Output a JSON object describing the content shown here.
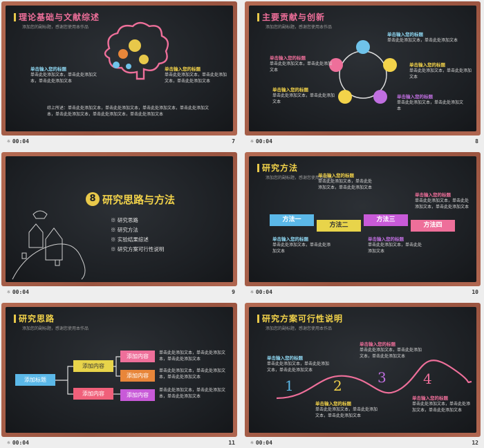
{
  "slides": [
    {
      "title": "理论基础与文献综述",
      "subtitle": "添加您的副标题，感谢您使用本作品",
      "footer_time": "00:04",
      "footer_num": "7",
      "left_heading": "单击输入您的标题",
      "left_text": "单击此处添加文本，单击此处添加文本，单击此处添加文本",
      "right_heading": "单击输入您的标题",
      "right_text": "单击此处添加文本，单击此处添加文本，单击此处添加文本",
      "bottom_text": "综上所述：单击此处添加文本，单击此处添加文本，单击此处添加文本，单击此处添加文本，单击此处添加文本，单击此处添加文本，单击此处添加文本",
      "icon": "brain-gears-icon"
    },
    {
      "title": "主要贡献与创新",
      "subtitle": "添加您的副标题，感谢您使用本作品",
      "footer_time": "00:04",
      "footer_num": "8",
      "items": [
        {
          "heading": "单击输入您的标题",
          "text": "单击此处添加文本，单击此处添加文本"
        },
        {
          "heading": "单击输入您的标题",
          "text": "单击此处添加文本，单击此处添加文本"
        },
        {
          "heading": "单击输入您的标题",
          "text": "单击此处添加文本，单击此处添加文本"
        },
        {
          "heading": "单击输入您的标题",
          "text": "单击此处添加文本，单击此处添加文本"
        },
        {
          "heading": "单击输入您的标题",
          "text": "单击此处添加文本，单击此处添加文本"
        }
      ],
      "circle_colors": [
        "#6fc3ea",
        "#f3d34a",
        "#c06fe0",
        "#f3d34a",
        "#ee6f9a"
      ]
    },
    {
      "title": "研究思路与方法",
      "badge": "8",
      "footer_time": "00:04",
      "footer_num": "9",
      "menu": [
        "研究思路",
        "研究方法",
        "实验结果综述",
        "研究方案可行性说明"
      ],
      "icon": "sketch-town-icon"
    },
    {
      "title": "研究方法",
      "subtitle": "添加您的副标题，感谢您使用本作品",
      "footer_time": "00:04",
      "footer_num": "10",
      "methods": [
        {
          "label": "方法一",
          "color": "#5bb8e8",
          "heading": "单击输入您的标题",
          "text": "单击此处添加文本，单击此处添加文本"
        },
        {
          "label": "方法二",
          "color": "#e8d44a",
          "heading": "单击输入您的标题",
          "text": "单击此处添加文本，单击此处添加文本，单击此处添加文本"
        },
        {
          "label": "方法三",
          "color": "#c85ad8",
          "heading": "单击输入您的标题",
          "text": "单击此处添加文本，单击此处添加文本"
        },
        {
          "label": "方法四",
          "color": "#ee6f9a",
          "heading": "单击输入您的标题",
          "text": "单击此处添加文本，单击此处添加文本，单击此处添加文本"
        }
      ]
    },
    {
      "title": "研究思路",
      "subtitle": "添加您的副标题，感谢您使用本作品",
      "footer_time": "00:04",
      "footer_num": "11",
      "root": "添加标题",
      "mid": [
        "添加内容",
        "添加内容"
      ],
      "leaves": [
        "添加内容",
        "添加内容",
        "添加内容"
      ],
      "leaf_texts": [
        "单击此处添加文本，单击此处添加文本，单击此处添加文本",
        "单击此处添加文本，单击此处添加文本，单击此处添加文本",
        "单击此处添加文本，单击此处添加文本，单击此处添加文本"
      ]
    },
    {
      "title": "研究方案可行性说明",
      "subtitle": "添加您的副标题，感谢您使用本作品",
      "footer_time": "00:04",
      "footer_num": "12",
      "steps": [
        {
          "num": "1",
          "heading": "单击输入您的标题",
          "text": "单击此处添加文本，单击此处添加文本，单击此处添加文本"
        },
        {
          "num": "2",
          "heading": "单击输入您的标题",
          "text": "单击此处添加文本，单击此处添加文本，单击此处添加文本"
        },
        {
          "num": "3",
          "heading": "单击输入您的标题",
          "text": "单击此处添加文本，单击此处添加文本，单击此处添加文本"
        },
        {
          "num": "4",
          "heading": "单击输入您的标题",
          "text": "单击此处添加文本，单击此处添加文本，单击此处添加文本"
        }
      ]
    }
  ]
}
